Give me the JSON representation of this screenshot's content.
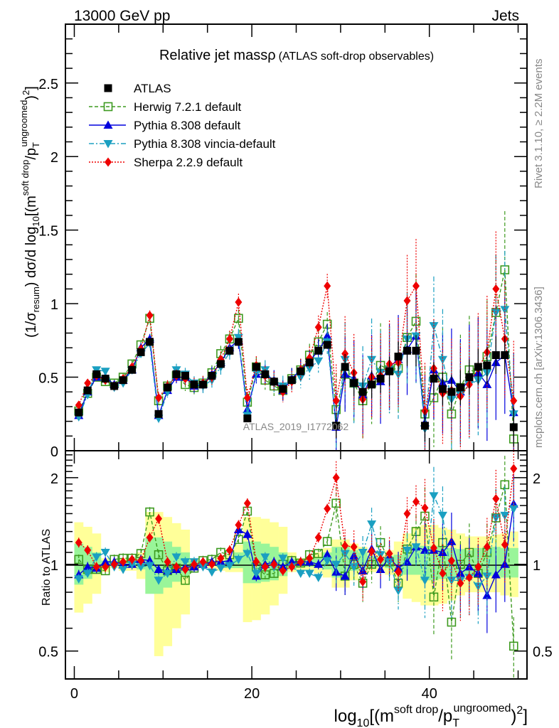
{
  "header": {
    "left_label": "13000 GeV pp",
    "right_label": "Jets"
  },
  "side_labels": {
    "rivet": "Rivet 3.1.10, ≥ 2.2M events",
    "mcplots": "mcplots.cern.ch [arXiv:1306.3436]"
  },
  "watermark": "ATLAS_2019_I1772062",
  "chart_data": [
    {
      "type": "scatter",
      "panel": "main",
      "title": "Relative jet massρ",
      "subtitle": "(ATLAS soft-drop observables)",
      "ylabel": "(1/σresum) dσ/d log10[(m^soft drop/pT^ungroomed)^2]",
      "ylabel_parts": {
        "pre": "(1/σ",
        "sub1": "resum",
        "mid": ") dσ/d log",
        "sub2": "10",
        "post": "[(m",
        "sup1": "soft drop",
        "slash": "/p",
        "sub3": "T",
        "sup2": "ungroomed",
        "end": ")",
        "sup3": "2",
        "close": "]"
      },
      "xlim": [
        -1,
        51
      ],
      "ylim": [
        0,
        2.9
      ],
      "yticks": [
        0,
        0.5,
        1,
        1.5,
        2,
        2.5
      ],
      "ytick_labels": [
        "0",
        "0.5",
        "1",
        "1.5",
        "2",
        "2.5"
      ],
      "xticks": [
        0,
        20,
        40
      ],
      "grid": false,
      "legend_position": "top-left",
      "x": [
        0.5,
        1.5,
        2.5,
        3.5,
        4.5,
        5.5,
        6.5,
        7.5,
        8.5,
        9.5,
        10.5,
        11.5,
        12.5,
        13.5,
        14.5,
        15.5,
        16.5,
        17.5,
        18.5,
        19.5,
        20.5,
        21.5,
        22.5,
        23.5,
        24.5,
        25.5,
        26.5,
        27.5,
        28.5,
        29.5,
        30.5,
        31.5,
        32.5,
        33.5,
        34.5,
        35.5,
        36.5,
        37.5,
        38.5,
        39.5,
        40.5,
        41.5,
        42.5,
        43.5,
        44.5,
        45.5,
        46.5,
        47.5,
        48.5,
        49.5
      ],
      "series": [
        {
          "name": "ATLAS",
          "color": "#000000",
          "marker": "square-filled",
          "line": "none",
          "values": [
            0.26,
            0.41,
            0.52,
            0.49,
            0.44,
            0.48,
            0.55,
            0.67,
            0.74,
            0.25,
            0.43,
            0.52,
            0.51,
            0.45,
            0.45,
            0.51,
            0.59,
            0.68,
            0.74,
            0.22,
            0.57,
            0.52,
            0.47,
            0.42,
            0.48,
            0.54,
            0.6,
            0.68,
            0.72,
            0.17,
            0.57,
            0.46,
            0.4,
            0.45,
            0.49,
            0.54,
            0.64,
            0.68,
            0.68,
            0.17,
            0.49,
            0.42,
            0.4,
            0.43,
            0.5,
            0.57,
            0.58,
            0.65,
            0.65,
            0.16
          ]
        },
        {
          "name": "Herwig 7.2.1 default",
          "color": "#3d9a1f",
          "marker": "square-open",
          "line": "dashed",
          "values": [
            0.27,
            0.39,
            0.5,
            0.47,
            0.46,
            0.5,
            0.59,
            0.72,
            0.9,
            0.34,
            0.44,
            0.51,
            0.45,
            0.43,
            0.46,
            0.53,
            0.66,
            0.76,
            0.9,
            0.33,
            0.57,
            0.48,
            0.44,
            0.41,
            0.49,
            0.55,
            0.65,
            0.74,
            0.86,
            0.28,
            0.52,
            0.46,
            0.34,
            0.46,
            0.58,
            0.55,
            0.56,
            0.77,
            0.88,
            0.25,
            0.36,
            0.5,
            0.25,
            0.43,
            0.55,
            0.53,
            0.64,
            0.94,
            1.23,
            0.08
          ]
        },
        {
          "name": "Pythia 8.308 default",
          "color": "#0000dd",
          "marker": "triangle-up",
          "line": "solid",
          "values": [
            0.24,
            0.4,
            0.5,
            0.5,
            0.45,
            0.48,
            0.55,
            0.7,
            0.76,
            0.24,
            0.41,
            0.5,
            0.5,
            0.44,
            0.45,
            0.52,
            0.6,
            0.7,
            0.75,
            0.28,
            0.52,
            0.52,
            0.48,
            0.41,
            0.49,
            0.55,
            0.61,
            0.68,
            0.78,
            0.16,
            0.52,
            0.49,
            0.38,
            0.51,
            0.47,
            0.57,
            0.62,
            0.69,
            0.78,
            0.19,
            0.55,
            0.46,
            0.48,
            0.4,
            0.49,
            0.53,
            0.45,
            0.6,
            0.65,
            0.26
          ]
        },
        {
          "name": "Pythia 8.308 vincia-default",
          "color": "#1a9fc1",
          "marker": "triangle-down",
          "line": "dashdot",
          "values": [
            0.23,
            0.38,
            0.55,
            0.54,
            0.43,
            0.46,
            0.55,
            0.66,
            0.73,
            0.22,
            0.4,
            0.55,
            0.52,
            0.46,
            0.44,
            0.48,
            0.57,
            0.67,
            0.77,
            0.24,
            0.53,
            0.55,
            0.46,
            0.44,
            0.47,
            0.5,
            0.56,
            0.61,
            0.74,
            0.17,
            0.62,
            0.45,
            0.44,
            0.62,
            0.53,
            0.55,
            0.52,
            0.76,
            0.78,
            0.15,
            0.85,
            0.62,
            0.35,
            0.38,
            0.45,
            0.48,
            0.53,
            0.94,
            0.96,
            0.25
          ]
        },
        {
          "name": "Sherpa 2.2.9 default",
          "color": "#ee0000",
          "marker": "diamond",
          "line": "dotted",
          "values": [
            0.31,
            0.46,
            0.51,
            0.48,
            0.44,
            0.49,
            0.57,
            0.69,
            0.92,
            0.36,
            0.44,
            0.51,
            0.49,
            0.45,
            0.46,
            0.5,
            0.62,
            0.76,
            1.01,
            0.36,
            0.58,
            0.51,
            0.47,
            0.4,
            0.47,
            0.55,
            0.63,
            0.84,
            1.12,
            0.34,
            0.66,
            0.53,
            0.35,
            0.5,
            0.51,
            0.59,
            0.6,
            1.02,
            1.12,
            0.27,
            0.56,
            0.39,
            0.41,
            0.37,
            0.45,
            0.56,
            0.67,
            1.1,
            0.76,
            0.34
          ]
        }
      ]
    },
    {
      "type": "scatter",
      "panel": "ratio",
      "ylabel": "Ratio to ATLAS",
      "yscale": "log",
      "ylim": [
        0.4,
        2.48
      ],
      "yticks": [
        0.5,
        1,
        2
      ],
      "ytick_labels": [
        "0.5",
        "1",
        "2"
      ],
      "xlim": [
        -1,
        51
      ],
      "xticks": [
        0,
        20,
        40
      ],
      "xtick_labels": [
        "0",
        "20",
        "40"
      ],
      "xlabel": "log10[(m^soft drop/pT^ungroomed)^2]",
      "xlabel_parts": {
        "pre": "log",
        "sub1": "10",
        "mid": "[(m",
        "sup1": "soft drop",
        "slash": "/p",
        "sub2": "T",
        "sup2": "ungroomed",
        "end": ")",
        "sup3": "2",
        "close": "]"
      },
      "reference_line": 1,
      "band_colors": {
        "stat": "#99f599",
        "total": "#ffff99"
      },
      "bands": {
        "stat_lo": [
          0.85,
          0.89,
          0.93,
          0.98,
          0.99,
          0.99,
          0.99,
          0.96,
          0.79,
          0.79,
          0.83,
          0.87,
          0.91,
          0.98,
          0.99,
          0.99,
          0.98,
          0.97,
          0.97,
          0.86,
          0.86,
          0.87,
          0.88,
          0.91,
          0.96,
          0.98,
          0.98,
          0.98,
          0.96,
          0.9,
          0.91,
          0.95,
          0.95,
          0.97,
          0.98,
          0.97,
          0.95,
          0.92,
          0.92,
          0.88,
          0.88,
          0.89,
          0.9,
          0.91,
          0.92,
          0.92,
          0.91,
          0.91,
          0.9,
          0.9
        ],
        "stat_hi": [
          1.18,
          1.15,
          1.1,
          1.03,
          1.02,
          1.02,
          1.03,
          1.05,
          1.24,
          1.24,
          1.2,
          1.15,
          1.1,
          1.03,
          1.02,
          1.02,
          1.03,
          1.04,
          1.1,
          1.2,
          1.2,
          1.18,
          1.15,
          1.1,
          1.05,
          1.03,
          1.04,
          1.06,
          1.1,
          1.15,
          1.15,
          1.12,
          1.1,
          1.07,
          1.06,
          1.07,
          1.08,
          1.12,
          1.16,
          1.16,
          1.16,
          1.15,
          1.14,
          1.13,
          1.12,
          1.14,
          1.15,
          1.15,
          1.14,
          1.14
        ],
        "tot_lo": [
          0.68,
          0.73,
          0.79,
          0.94,
          0.97,
          0.95,
          0.95,
          0.89,
          0.84,
          0.48,
          0.52,
          0.6,
          0.67,
          0.95,
          0.98,
          0.97,
          0.95,
          0.94,
          0.94,
          0.63,
          0.64,
          0.67,
          0.72,
          0.79,
          0.94,
          0.95,
          0.95,
          0.93,
          0.9,
          0.83,
          0.83,
          0.88,
          0.92,
          0.94,
          0.95,
          0.92,
          0.84,
          0.76,
          0.74,
          0.72,
          0.72,
          0.73,
          0.75,
          0.78,
          0.8,
          0.8,
          0.8,
          0.8,
          0.78,
          0.77
        ],
        "tot_hi": [
          1.4,
          1.35,
          1.28,
          1.05,
          1.03,
          1.05,
          1.05,
          1.1,
          1.52,
          1.52,
          1.46,
          1.39,
          1.32,
          1.05,
          1.02,
          1.03,
          1.06,
          1.08,
          1.17,
          1.46,
          1.46,
          1.44,
          1.4,
          1.35,
          1.1,
          1.05,
          1.06,
          1.1,
          1.14,
          1.22,
          1.22,
          1.18,
          1.15,
          1.1,
          1.08,
          1.12,
          1.2,
          1.28,
          1.35,
          1.37,
          1.37,
          1.34,
          1.32,
          1.28,
          1.25,
          1.25,
          1.25,
          1.27,
          1.28,
          1.3
        ]
      },
      "series": [
        {
          "name": "Herwig 7.2.1 default",
          "color": "#3d9a1f",
          "marker": "square-open",
          "line": "dashed",
          "values": [
            1.04,
            0.96,
            0.96,
            0.95,
            1.04,
            1.05,
            1.05,
            1.09,
            1.52,
            1.08,
            0.95,
            0.97,
            0.88,
            0.97,
            1.03,
            1.04,
            1.1,
            1.08,
            1.22,
            1.53,
            0.98,
            0.92,
            0.93,
            1.0,
            1.03,
            1.01,
            1.08,
            1.09,
            1.2,
            1.63,
            0.91,
            1.0,
            0.86,
            1.0,
            1.19,
            1.02,
            0.86,
            1.13,
            1.3,
            1.47,
            0.77,
            1.19,
            0.63,
            1.0,
            1.1,
            0.93,
            1.1,
            1.45,
            1.89,
            0.52
          ]
        },
        {
          "name": "Pythia 8.308 default",
          "color": "#0000dd",
          "marker": "triangle-up",
          "line": "solid",
          "values": [
            0.92,
            0.98,
            0.97,
            1.02,
            1.02,
            1.0,
            1.0,
            1.04,
            1.03,
            0.96,
            0.95,
            0.96,
            0.98,
            0.98,
            1.0,
            1.02,
            1.02,
            1.03,
            1.32,
            1.27,
            0.91,
            1.0,
            1.02,
            0.98,
            1.02,
            1.02,
            1.02,
            1.0,
            1.08,
            0.94,
            0.91,
            1.07,
            0.95,
            1.13,
            0.96,
            1.06,
            0.97,
            1.02,
            1.15,
            1.12,
            1.12,
            1.1,
            1.2,
            0.93,
            0.98,
            0.93,
            0.78,
            0.92,
            1.0,
            1.62
          ]
        },
        {
          "name": "Pythia 8.308 vincia-default",
          "color": "#1a9fc1",
          "marker": "triangle-down",
          "line": "dashdot",
          "values": [
            0.89,
            0.93,
            1.06,
            1.1,
            0.98,
            0.96,
            1.0,
            0.98,
            0.99,
            0.88,
            0.93,
            1.06,
            1.02,
            1.02,
            0.98,
            0.94,
            0.97,
            0.99,
            1.04,
            1.09,
            0.93,
            1.06,
            0.98,
            1.05,
            0.98,
            0.93,
            0.93,
            0.9,
            1.03,
            1.0,
            1.09,
            0.98,
            1.1,
            1.38,
            1.08,
            1.02,
            0.81,
            1.12,
            1.15,
            0.88,
            1.73,
            1.48,
            0.88,
            0.88,
            0.9,
            0.84,
            0.91,
            1.45,
            1.48,
            1.56
          ]
        },
        {
          "name": "Sherpa 2.2.9 default",
          "color": "#ee0000",
          "marker": "diamond",
          "line": "dotted",
          "values": [
            1.19,
            1.12,
            0.98,
            0.98,
            1.0,
            1.02,
            1.04,
            1.03,
            1.24,
            1.44,
            1.02,
            0.98,
            0.96,
            1.0,
            1.02,
            1.0,
            1.05,
            1.12,
            1.37,
            1.63,
            1.02,
            0.98,
            1.0,
            0.95,
            0.98,
            1.02,
            1.05,
            1.24,
            1.56,
            2.0,
            1.16,
            1.15,
            0.87,
            1.11,
            1.04,
            1.09,
            0.94,
            1.5,
            1.65,
            1.57,
            1.14,
            0.93,
            1.03,
            0.86,
            0.9,
            0.98,
            1.15,
            1.69,
            1.17,
            2.15
          ]
        }
      ]
    }
  ],
  "legend": [
    {
      "label": "ATLAS",
      "color": "#000000",
      "marker": "square-filled",
      "line": "none"
    },
    {
      "label": "Herwig 7.2.1 default",
      "color": "#3d9a1f",
      "marker": "square-open",
      "line": "dashed"
    },
    {
      "label": "Pythia 8.308 default",
      "color": "#0000dd",
      "marker": "triangle-up",
      "line": "solid"
    },
    {
      "label": "Pythia 8.308 vincia-default",
      "color": "#1a9fc1",
      "marker": "triangle-down",
      "line": "dashdot"
    },
    {
      "label": "Sherpa 2.2.9 default",
      "color": "#ee0000",
      "marker": "diamond",
      "line": "dotted"
    }
  ]
}
